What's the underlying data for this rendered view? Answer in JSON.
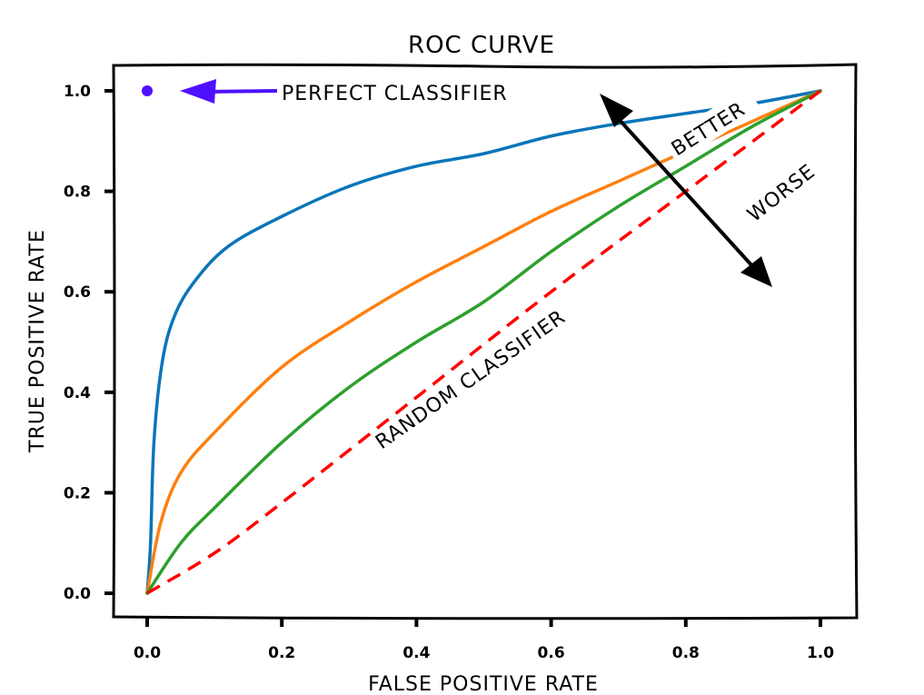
{
  "chart_data": {
    "type": "line",
    "title": "ROC CURVE",
    "xlabel": "FALSE POSITIVE RATE",
    "ylabel": "TRUE POSITIVE RATE",
    "xlim": [
      -0.05,
      1.05
    ],
    "ylim": [
      -0.05,
      1.05
    ],
    "xticks": [
      "0.0",
      "0.2",
      "0.4",
      "0.6",
      "0.8",
      "1.0"
    ],
    "yticks": [
      "0.0",
      "0.2",
      "0.4",
      "0.6",
      "0.8",
      "1.0"
    ],
    "grid": false,
    "series": [
      {
        "color": "#0a75b9",
        "style": "solid",
        "points": [
          [
            0,
            0
          ],
          [
            0.005,
            0.1
          ],
          [
            0.01,
            0.3
          ],
          [
            0.022,
            0.457
          ],
          [
            0.04,
            0.55
          ],
          [
            0.07,
            0.62
          ],
          [
            0.12,
            0.69
          ],
          [
            0.2,
            0.75
          ],
          [
            0.3,
            0.81
          ],
          [
            0.4,
            0.85
          ],
          [
            0.5,
            0.875
          ],
          [
            0.6,
            0.91
          ],
          [
            0.7,
            0.935
          ],
          [
            0.8,
            0.955
          ],
          [
            0.9,
            0.975
          ],
          [
            1,
            1
          ]
        ]
      },
      {
        "color": "#ff7f0e",
        "style": "solid",
        "points": [
          [
            0,
            0
          ],
          [
            0.02,
            0.14
          ],
          [
            0.05,
            0.24
          ],
          [
            0.1,
            0.32
          ],
          [
            0.2,
            0.45
          ],
          [
            0.3,
            0.54
          ],
          [
            0.4,
            0.62
          ],
          [
            0.5,
            0.69
          ],
          [
            0.6,
            0.76
          ],
          [
            0.7,
            0.82
          ],
          [
            0.8,
            0.88
          ],
          [
            0.9,
            0.94
          ],
          [
            1,
            1
          ]
        ]
      },
      {
        "color": "#2ca02c",
        "style": "solid",
        "points": [
          [
            0,
            0
          ],
          [
            0.05,
            0.1
          ],
          [
            0.1,
            0.17
          ],
          [
            0.2,
            0.3
          ],
          [
            0.3,
            0.41
          ],
          [
            0.4,
            0.5
          ],
          [
            0.5,
            0.58
          ],
          [
            0.6,
            0.68
          ],
          [
            0.7,
            0.77
          ],
          [
            0.8,
            0.85
          ],
          [
            0.9,
            0.93
          ],
          [
            1,
            1
          ]
        ]
      },
      {
        "color": "#ff0000",
        "style": "dashed",
        "points": [
          [
            0,
            0
          ],
          [
            0.1,
            0.08
          ],
          [
            0.2,
            0.18
          ],
          [
            0.4,
            0.39
          ],
          [
            0.6,
            0.6
          ],
          [
            0.8,
            0.8
          ],
          [
            1,
            1
          ]
        ]
      }
    ],
    "annotations": {
      "perfect": {
        "text": "PERFECT CLASSIFIER",
        "point": [
          0,
          1
        ],
        "color": "#4f10ff"
      },
      "random": {
        "text": "RANDOM CLASSIFIER",
        "color": "#ff0000"
      },
      "better": {
        "text": "BETTER",
        "color": "#000000"
      },
      "worse": {
        "text": "WORSE",
        "color": "#000000"
      }
    }
  }
}
